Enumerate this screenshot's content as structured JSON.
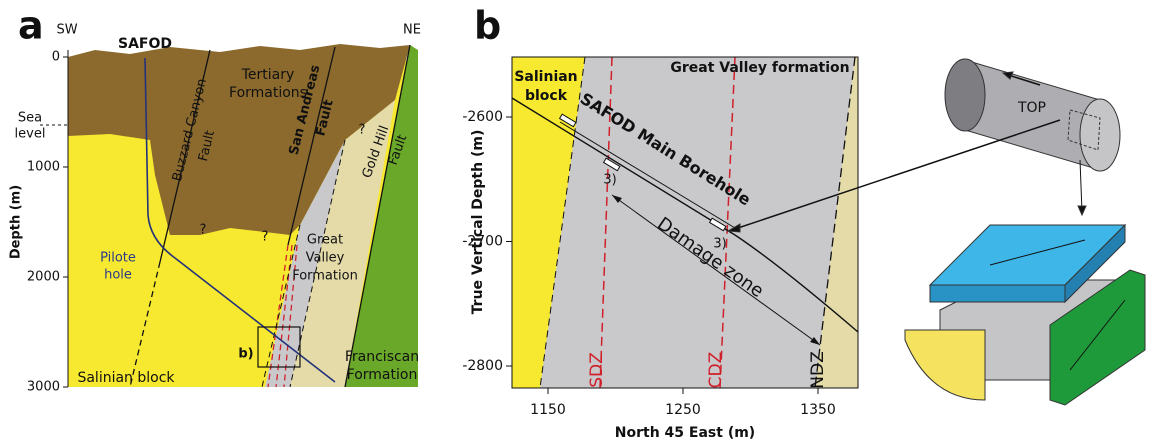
{
  "panel_a": {
    "label": "a",
    "sw": "SW",
    "ne": "NE",
    "safod": "SAFOD",
    "y_axis_title": "Depth (m)",
    "yticks": [
      0,
      1000,
      2000,
      3000
    ],
    "sea_level": [
      "Sea",
      "level"
    ],
    "tertiary": [
      "Tertiary",
      "Formations"
    ],
    "buzzard": [
      "Buzzard Canyon",
      "Fault"
    ],
    "san_andreas": [
      "San Andreas",
      "Fault"
    ],
    "gold_hill": [
      "Gold Hill",
      "Fault"
    ],
    "great_valley": [
      "Great",
      "Valley",
      "Formation"
    ],
    "pilote": [
      "Pilote",
      "hole"
    ],
    "salinian": "Salinian block",
    "franciscan": [
      "Franciscan",
      "Formation"
    ],
    "inset": "b)",
    "unknown": "?"
  },
  "panel_b": {
    "label": "b",
    "salinian": [
      "Salinian",
      "block"
    ],
    "great_valley": "Great Valley formation",
    "borehole": "SAFOD Main Borehole",
    "damage_zone": "Damage zone",
    "sdz": "SDZ",
    "cdz": "CDZ",
    "ndz": "NDZ",
    "marker": "3)",
    "y_axis_title": "True Vertical Depth (m)",
    "x_axis_title": "North 45 East (m)",
    "yticks": [
      -2600,
      -2700,
      -2800
    ],
    "xticks": [
      1150,
      1250,
      1350
    ],
    "top": "TOP"
  }
}
